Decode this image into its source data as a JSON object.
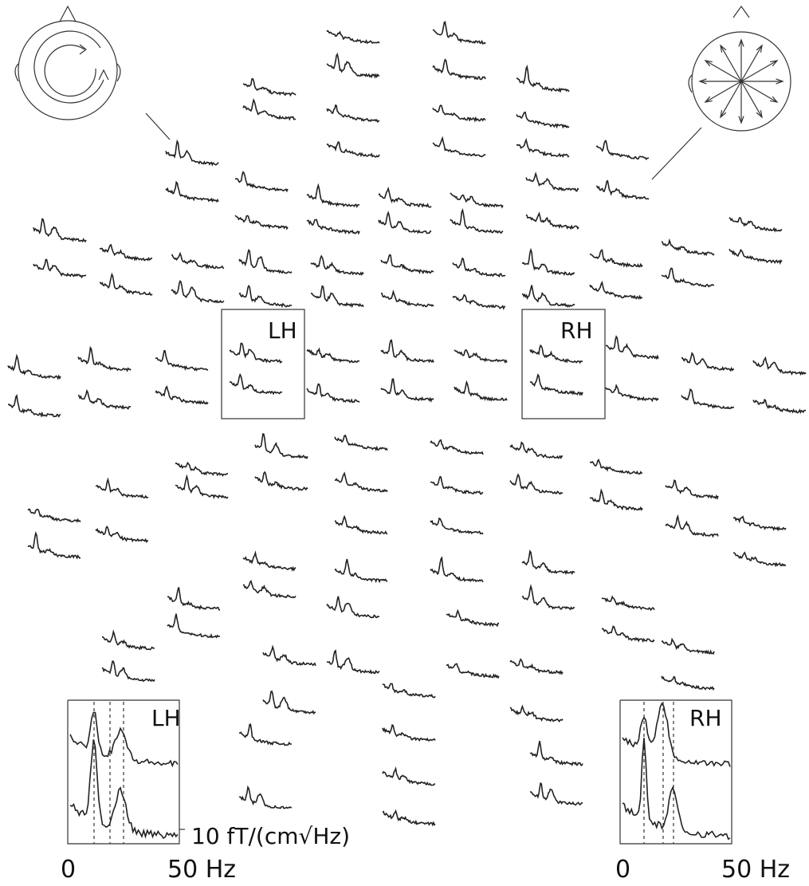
{
  "boxes": [
    {
      "label": "LH"
    },
    {
      "label": "RH"
    }
  ],
  "insets": [
    {
      "label": "LH",
      "x_start": "0",
      "x_end": "50 Hz",
      "scale_label": "10 fT/(cm√Hz)"
    },
    {
      "label": "RH",
      "x_start": "0",
      "x_end": "50 Hz"
    }
  ]
}
